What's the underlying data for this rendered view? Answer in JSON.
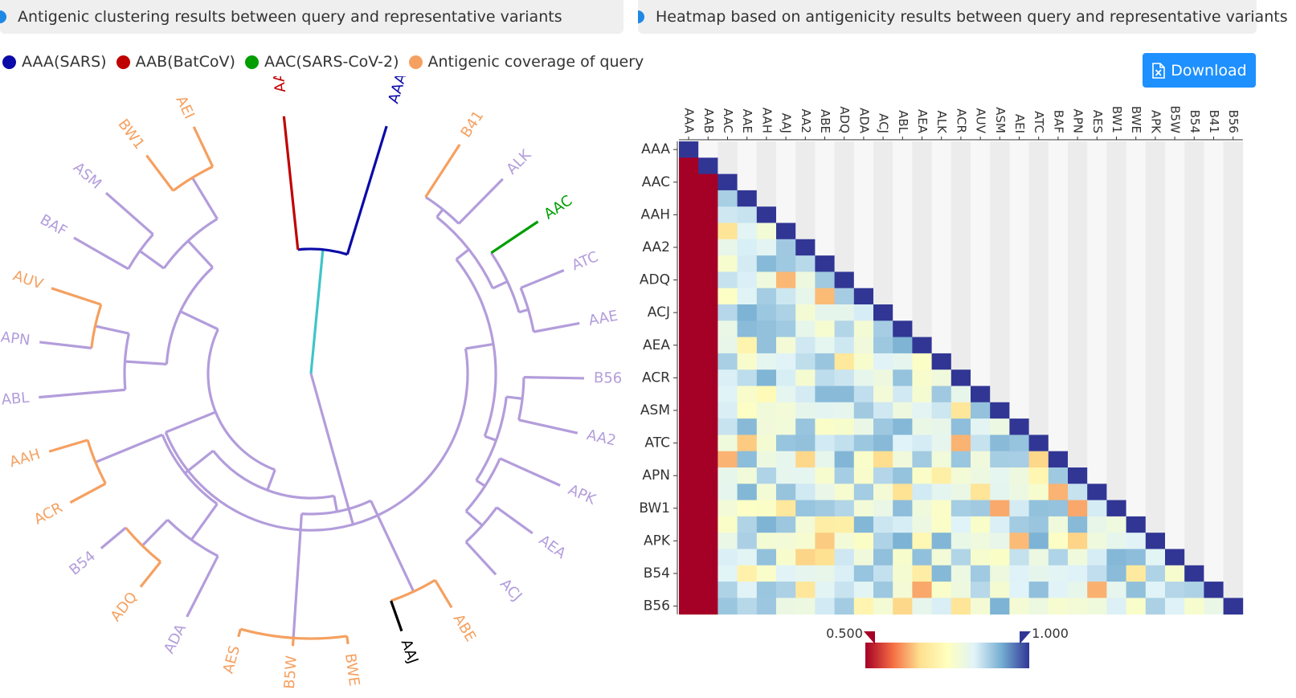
{
  "left_panel": {
    "title": "Antigenic clustering results between query and representative variants"
  },
  "right_panel": {
    "title": "Heatmap based on antigenicity results between query and representative variants"
  },
  "legend": [
    {
      "label": "AAA(SARS)",
      "color": "#0a0aa8"
    },
    {
      "label": "AAB(BatCoV)",
      "color": "#c00000"
    },
    {
      "label": "AAC(SARS-CoV-2)",
      "color": "#009e00"
    },
    {
      "label": "Antigenic coverage of query",
      "color": "#f5a060"
    }
  ],
  "download": {
    "label": "Download",
    "icon": "excel-file-icon"
  },
  "colors": {
    "tree_default": "#b39ddb",
    "root_branch": "#40c4c8",
    "query": "#000000",
    "accent": "#1e90ff"
  },
  "tree_leaves": [
    {
      "label": "AAA",
      "group": "sars"
    },
    {
      "label": "B41",
      "group": "coverage"
    },
    {
      "label": "ALK",
      "group": "default"
    },
    {
      "label": "AAC",
      "group": "sars2"
    },
    {
      "label": "ATC",
      "group": "default"
    },
    {
      "label": "AAE",
      "group": "default"
    },
    {
      "label": "B56",
      "group": "default"
    },
    {
      "label": "AA2",
      "group": "default"
    },
    {
      "label": "APK",
      "group": "default"
    },
    {
      "label": "AEA",
      "group": "default"
    },
    {
      "label": "ACJ",
      "group": "default"
    },
    {
      "label": "ABE",
      "group": "coverage"
    },
    {
      "label": "AAJ",
      "group": "query"
    },
    {
      "label": "BWE",
      "group": "coverage"
    },
    {
      "label": "B5W",
      "group": "coverage"
    },
    {
      "label": "AES",
      "group": "coverage"
    },
    {
      "label": "ADA",
      "group": "default"
    },
    {
      "label": "ADQ",
      "group": "coverage"
    },
    {
      "label": "B54",
      "group": "default"
    },
    {
      "label": "ACR",
      "group": "coverage"
    },
    {
      "label": "AAH",
      "group": "coverage"
    },
    {
      "label": "ABL",
      "group": "default"
    },
    {
      "label": "APN",
      "group": "default"
    },
    {
      "label": "AUV",
      "group": "coverage"
    },
    {
      "label": "BAF",
      "group": "default"
    },
    {
      "label": "ASM",
      "group": "default"
    },
    {
      "label": "BW1",
      "group": "coverage"
    },
    {
      "label": "AEI",
      "group": "coverage"
    },
    {
      "label": "AAB",
      "group": "batcov"
    }
  ],
  "heatmap": {
    "columns": [
      "AAA",
      "AAB",
      "AAC",
      "AAE",
      "AAH",
      "AAJ",
      "AA2",
      "ABE",
      "ADQ",
      "ADA",
      "ACJ",
      "ABL",
      "AEA",
      "ALK",
      "ACR",
      "AUV",
      "ASM",
      "AEI",
      "ATC",
      "BAF",
      "APN",
      "AES",
      "BW1",
      "BWE",
      "APK",
      "B5W",
      "B54",
      "B41",
      "B56"
    ],
    "row_labels": [
      "AAA",
      "AAC",
      "AAH",
      "AA2",
      "ADQ",
      "ACJ",
      "AEA",
      "ACR",
      "ASM",
      "ATC",
      "APN",
      "BW1",
      "APK",
      "B54",
      "B56"
    ],
    "scale_min_label": "0.500",
    "scale_max_label": "1.000",
    "scale_min": 0.5,
    "scale_max": 1.0,
    "color_stops": [
      "#a50026",
      "#f46d43",
      "#fee090",
      "#ffffbf",
      "#e0f3f8",
      "#74add1",
      "#313695"
    ]
  }
}
